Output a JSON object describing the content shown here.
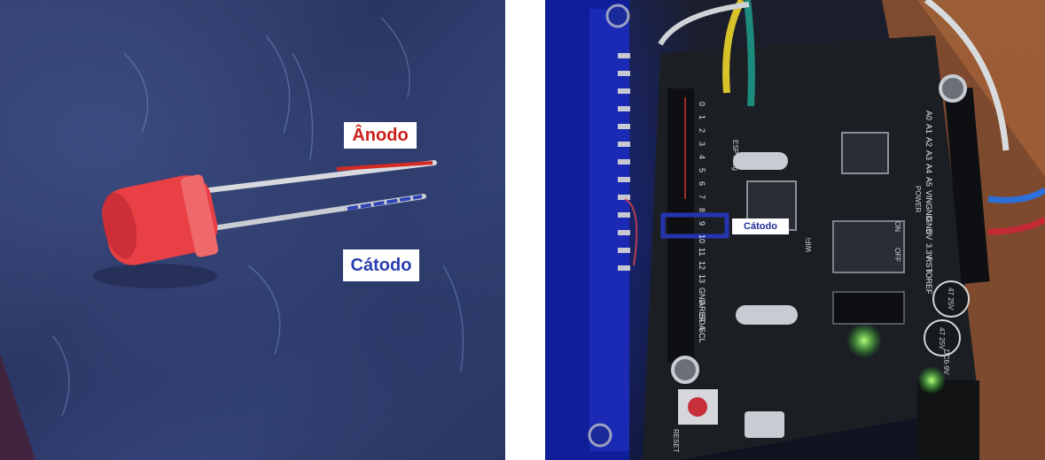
{
  "left_photo": {
    "anode_label": "Ânodo",
    "cathode_label": "Cátodo",
    "anode_marker_color": "#d42a22",
    "cathode_marker_color": "#2e45b8"
  },
  "right_photo": {
    "cathode_label": "Cátodo",
    "pin_highlight_color": "#2535b0",
    "pin_labels": [
      "0",
      "1",
      "2",
      "3",
      "4",
      "5",
      "6",
      "7",
      "8",
      "9",
      "10",
      "11",
      "12",
      "13",
      "GND",
      "AREF",
      "SDA",
      "SCL"
    ],
    "power_labels": [
      "A0",
      "A1",
      "A2",
      "A3",
      "A4",
      "A5",
      "VIN",
      "GND",
      "GND",
      "5V",
      "3.3V",
      "RST",
      "IOREF"
    ],
    "board_text": [
      "RESET",
      "WiFi",
      "ESP Prog",
      "47 25V",
      "47 25V",
      "DC6-9V",
      "ON",
      "OFF",
      "POWER"
    ]
  }
}
